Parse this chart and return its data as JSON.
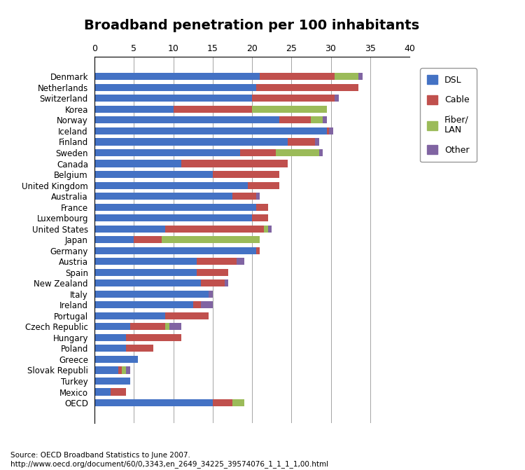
{
  "title": "Broadband penetration per 100 inhabitants",
  "countries": [
    "Denmark",
    "Netherlands",
    "Switzerland",
    "Korea",
    "Norway",
    "Iceland",
    "Finland",
    "Sweden",
    "Canada",
    "Belgium",
    "United Kingdom",
    "Australia",
    "France",
    "Luxembourg",
    "United States",
    "Japan",
    "Germany",
    "Austria",
    "Spain",
    "New Zealand",
    "Italy",
    "Ireland",
    "Portugal",
    "Czech Republic",
    "Hungary",
    "Poland",
    "Greece",
    "Slovak Republi",
    "Turkey",
    "Mexico",
    "OECD"
  ],
  "dsl": [
    21.0,
    20.5,
    20.0,
    10.0,
    23.5,
    29.5,
    24.5,
    18.5,
    11.0,
    15.0,
    19.5,
    17.5,
    20.5,
    20.0,
    9.0,
    5.0,
    20.5,
    13.0,
    13.0,
    13.5,
    14.5,
    12.5,
    9.0,
    4.5,
    4.0,
    4.0,
    5.5,
    3.0,
    4.5,
    2.0,
    15.0
  ],
  "cable": [
    9.5,
    13.0,
    10.5,
    10.0,
    4.0,
    0.3,
    3.5,
    4.5,
    13.5,
    8.5,
    4.0,
    3.0,
    1.5,
    2.0,
    12.5,
    3.5,
    0.5,
    5.0,
    4.0,
    3.0,
    0.0,
    1.0,
    5.5,
    4.5,
    7.0,
    3.5,
    0.0,
    0.5,
    0.0,
    2.0,
    2.5
  ],
  "fiber": [
    3.0,
    0.0,
    0.0,
    9.5,
    1.5,
    0.0,
    0.0,
    5.5,
    0.0,
    0.0,
    0.0,
    0.0,
    0.0,
    0.0,
    0.5,
    12.5,
    0.0,
    0.0,
    0.0,
    0.0,
    0.0,
    0.0,
    0.0,
    0.5,
    0.0,
    0.0,
    0.0,
    0.5,
    0.0,
    0.0,
    1.5
  ],
  "other": [
    0.5,
    0.0,
    0.5,
    0.0,
    0.5,
    0.5,
    0.5,
    0.5,
    0.0,
    0.0,
    0.0,
    0.5,
    0.0,
    0.0,
    0.5,
    0.0,
    0.0,
    1.0,
    0.0,
    0.5,
    0.5,
    1.5,
    0.0,
    1.5,
    0.0,
    0.0,
    0.0,
    0.5,
    0.0,
    0.0,
    0.0
  ],
  "dsl_color": "#4472C4",
  "cable_color": "#C0504D",
  "fiber_color": "#9BBB59",
  "other_color": "#8064A2",
  "background_color": "#FFFFFF",
  "xlim": [
    0,
    40
  ],
  "xticks": [
    0,
    5,
    10,
    15,
    20,
    25,
    30,
    35,
    40
  ],
  "source_text": "Source: OECD Broadband Statistics to June 2007.\nhttp://www.oecd.org/document/60/0,3343,en_2649_34225_39574076_1_1_1_1,00.html",
  "bar_height": 0.65
}
